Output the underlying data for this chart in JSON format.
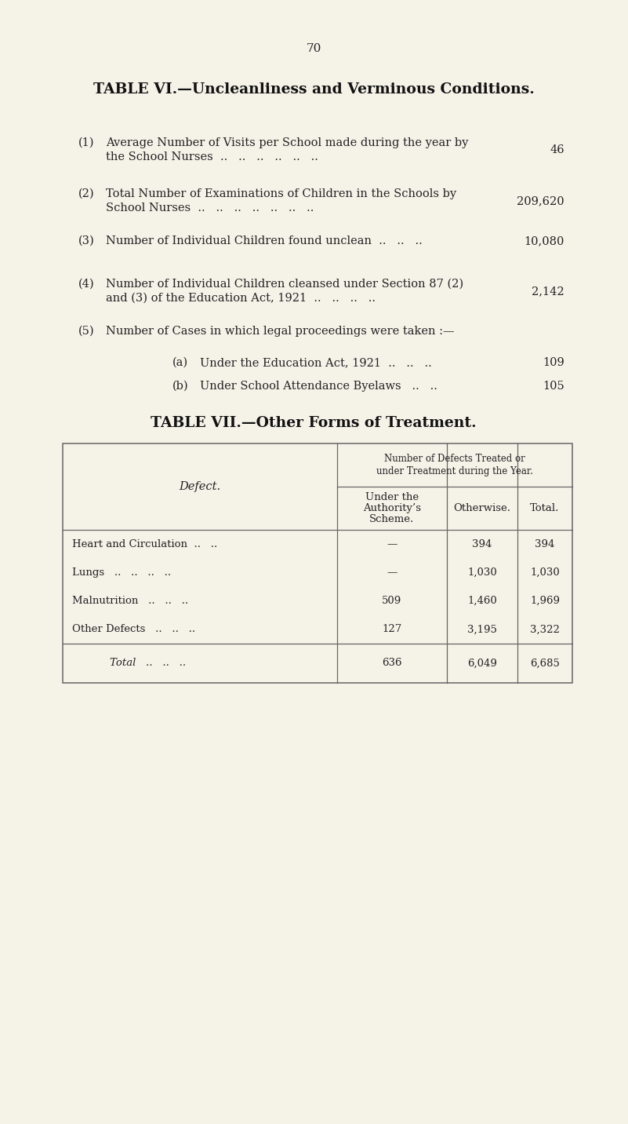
{
  "bg_color": "#f5f2e8",
  "page_number": "70",
  "table6_title": "TABLE VI.—Uncleanliness and Verminous Conditions.",
  "table6_items": [
    {
      "num": "(1)",
      "text_line1": "Average Number of Visits per School made during the year by",
      "text_line2": "the School Nurses  ..   ..   ..   ..   ..   ..",
      "value": "46"
    },
    {
      "num": "(2)",
      "text_line1": "Total Number of Examinations of Children in the Schools by",
      "text_line2": "School Nurses  ..   ..   ..   ..   ..   ..   ..",
      "value": "209,620"
    },
    {
      "num": "(3)",
      "text_line1": "Number of Individual Children found unclean  ..   ..   ..",
      "text_line2": "",
      "value": "10,080"
    },
    {
      "num": "(4)",
      "text_line1": "Number of Individual Children cleansed under Section 87 (2)",
      "text_line2": "and (3) of the Education Act, 1921  ..   ..   ..   ..",
      "value": "2,142"
    },
    {
      "num": "(5)",
      "text_line1": "Number of Cases in which legal proceedings were taken :—",
      "text_line2": "",
      "value": ""
    }
  ],
  "table6_sub_items": [
    {
      "label": "(a)",
      "text": "Under the Education Act, 1921  ..   ..   ..",
      "value": "109"
    },
    {
      "label": "(b)",
      "text": "Under School Attendance Byelaws   ..   ..",
      "value": "105"
    }
  ],
  "table7_title": "TABLE VII.—Other Forms of Treatment.",
  "table7_header_main_line1": "Number of Defects Treated or",
  "table7_header_main_line2": "under Treatment during the Year.",
  "table7_col1_header": "Defect.",
  "table7_col2_header_line1": "Under the",
  "table7_col2_header_line2": "Authority’s",
  "table7_col2_header_line3": "Scheme.",
  "table7_col3_header": "Otherwise.",
  "table7_col4_header": "Total.",
  "table7_rows": [
    [
      "Heart and Circulation  ..   ..",
      "—",
      "394",
      "394"
    ],
    [
      "Lungs   ..   ..   ..   ..",
      "—",
      "1,030",
      "1,030"
    ],
    [
      "Malnutrition   ..   ..   ..",
      "509",
      "1,460",
      "1,969"
    ],
    [
      "Other Defects   ..   ..   ..",
      "127",
      "3,195",
      "3,322"
    ]
  ],
  "table7_total": [
    "Total   ..   ..   ..",
    "636",
    "6,049",
    "6,685"
  ]
}
